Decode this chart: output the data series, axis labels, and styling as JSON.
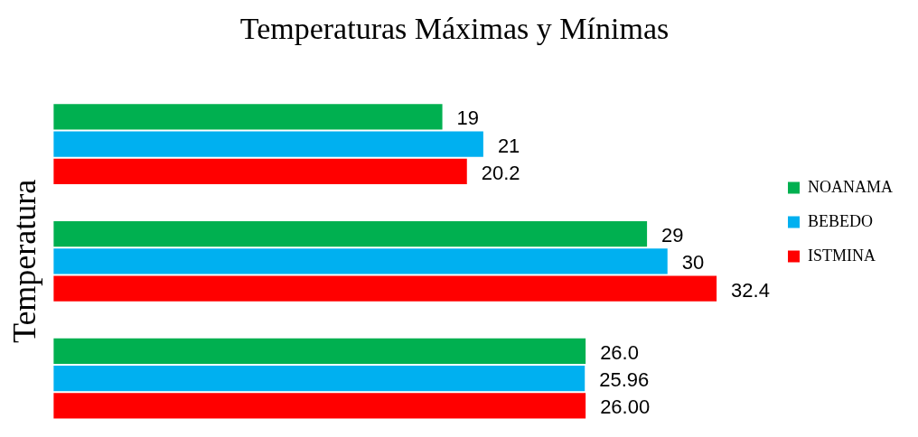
{
  "chart_data": {
    "type": "bar",
    "orientation": "horizontal",
    "title": "Temperaturas Máximas y Mínimas",
    "ylabel": "Temperatura",
    "categories": [
      null,
      null,
      null
    ],
    "series": [
      {
        "name": "NOANAMA",
        "color": "#00b050",
        "values": [
          19,
          29,
          26.0
        ],
        "value_labels": [
          "19",
          "29",
          "26.0"
        ]
      },
      {
        "name": "BEBEDO",
        "color": "#00b0f0",
        "values": [
          21,
          30,
          25.96
        ],
        "value_labels": [
          "21",
          "30",
          "25.96"
        ]
      },
      {
        "name": "ISTMINA",
        "color": "#ff0000",
        "values": [
          20.2,
          32.4,
          26.0
        ],
        "value_labels": [
          "20.2",
          "32.4",
          "26.00"
        ]
      }
    ],
    "legend": "right",
    "grid": false
  }
}
